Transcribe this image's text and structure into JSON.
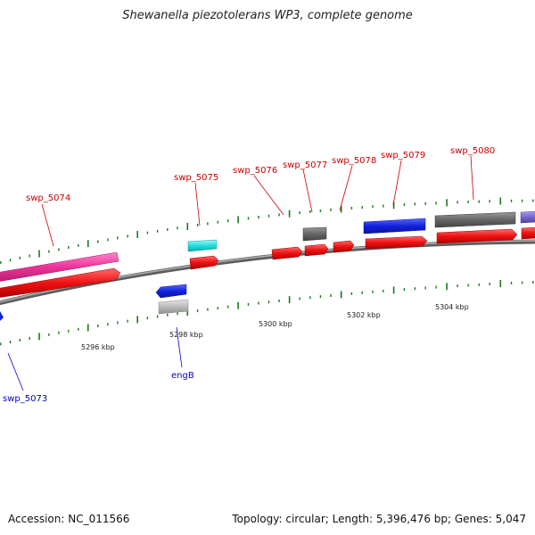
{
  "title": "Shewanella piezotolerans WP3, complete genome",
  "footer": {
    "accession": "Accession: NC_011566",
    "summary": "Topology: circular; Length: 5,396,476 bp; Genes: 5,047"
  },
  "scale_labels": [
    "5296 kbp",
    "5298 kbp",
    "5300 kbp",
    "5302 kbp",
    "5304 kbp"
  ],
  "gene_labels": {
    "swp_5074": "swp_5074",
    "swp_5075": "swp_5075",
    "swp_5076": "swp_5076",
    "swp_5077": "swp_5077",
    "swp_5078": "swp_5078",
    "swp_5079": "swp_5079",
    "swp_5080": "swp_5080",
    "swp_5073": "swp_5073",
    "engB": "engB"
  },
  "colors": {
    "forward_label": "#cc0000",
    "reverse_label": "#0000cc",
    "backbone": "#888888",
    "tick": "#1a7a1a",
    "cds": "#ee1111",
    "pink": "#ee3399",
    "cyan": "#22dddd",
    "blue": "#1122dd",
    "dark_gray": "#666666",
    "light_gray": "#bbbbbb",
    "purple": "#7766cc"
  }
}
